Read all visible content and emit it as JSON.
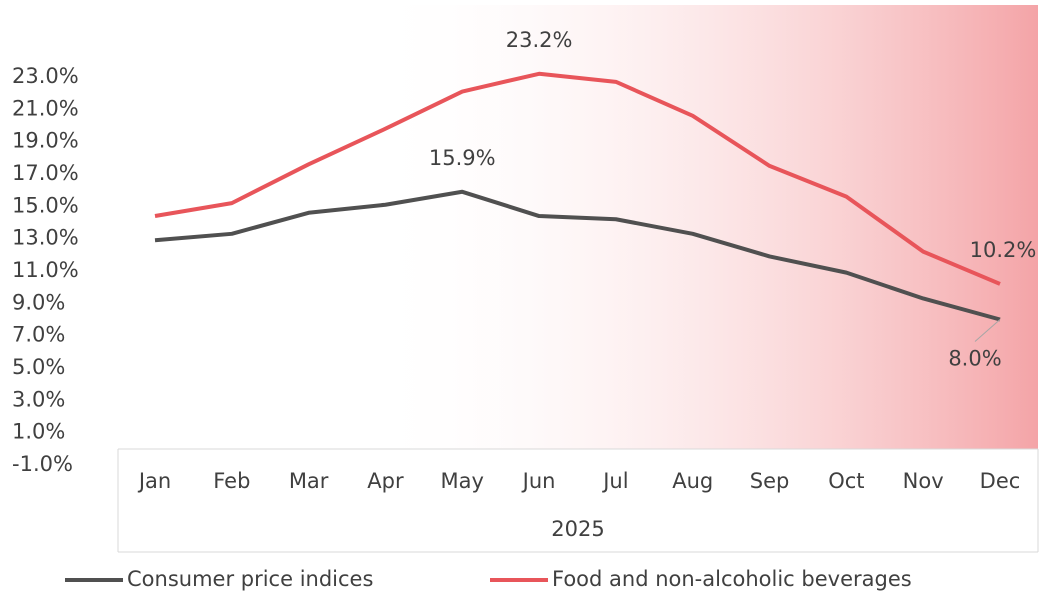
{
  "chart_data": {
    "type": "line",
    "categories": [
      "Jan",
      "Feb",
      "Mar",
      "Apr",
      "May",
      "Jun",
      "Jul",
      "Aug",
      "Sep",
      "Oct",
      "Nov",
      "Dec"
    ],
    "group_label": "2025",
    "series": [
      {
        "name": "Consumer price indices",
        "color": "#505050",
        "values": [
          12.9,
          13.3,
          14.6,
          15.1,
          15.9,
          14.4,
          14.2,
          13.3,
          11.9,
          10.9,
          9.3,
          8.0
        ],
        "value_labels": [
          null,
          null,
          null,
          null,
          "15.9%",
          null,
          null,
          null,
          null,
          null,
          null,
          "8.0%"
        ]
      },
      {
        "name": "Food and non-alcoholic beverages",
        "color": "#e8555a",
        "values": [
          14.4,
          15.2,
          17.6,
          19.8,
          22.1,
          23.2,
          22.7,
          20.6,
          17.5,
          15.6,
          12.2,
          10.2
        ],
        "value_labels": [
          null,
          null,
          null,
          null,
          null,
          "23.2%",
          null,
          null,
          null,
          null,
          null,
          "10.2%"
        ]
      }
    ],
    "ylim": [
      -1,
      23
    ],
    "yticks": [
      {
        "value": -1,
        "label": "-1.0%"
      },
      {
        "value": 1,
        "label": "1.0%"
      },
      {
        "value": 3,
        "label": "3.0%"
      },
      {
        "value": 5,
        "label": "5.0%"
      },
      {
        "value": 7,
        "label": "7.0%"
      },
      {
        "value": 9,
        "label": "9.0%"
      },
      {
        "value": 11,
        "label": "11.0%"
      },
      {
        "value": 13,
        "label": "13.0%"
      },
      {
        "value": 15,
        "label": "15.0%"
      },
      {
        "value": 17,
        "label": "17.0%"
      },
      {
        "value": 19,
        "label": "19.0%"
      },
      {
        "value": 21,
        "label": "21.0%"
      },
      {
        "value": 23,
        "label": "23.0%"
      }
    ],
    "grid": false,
    "legend": "bottom"
  }
}
